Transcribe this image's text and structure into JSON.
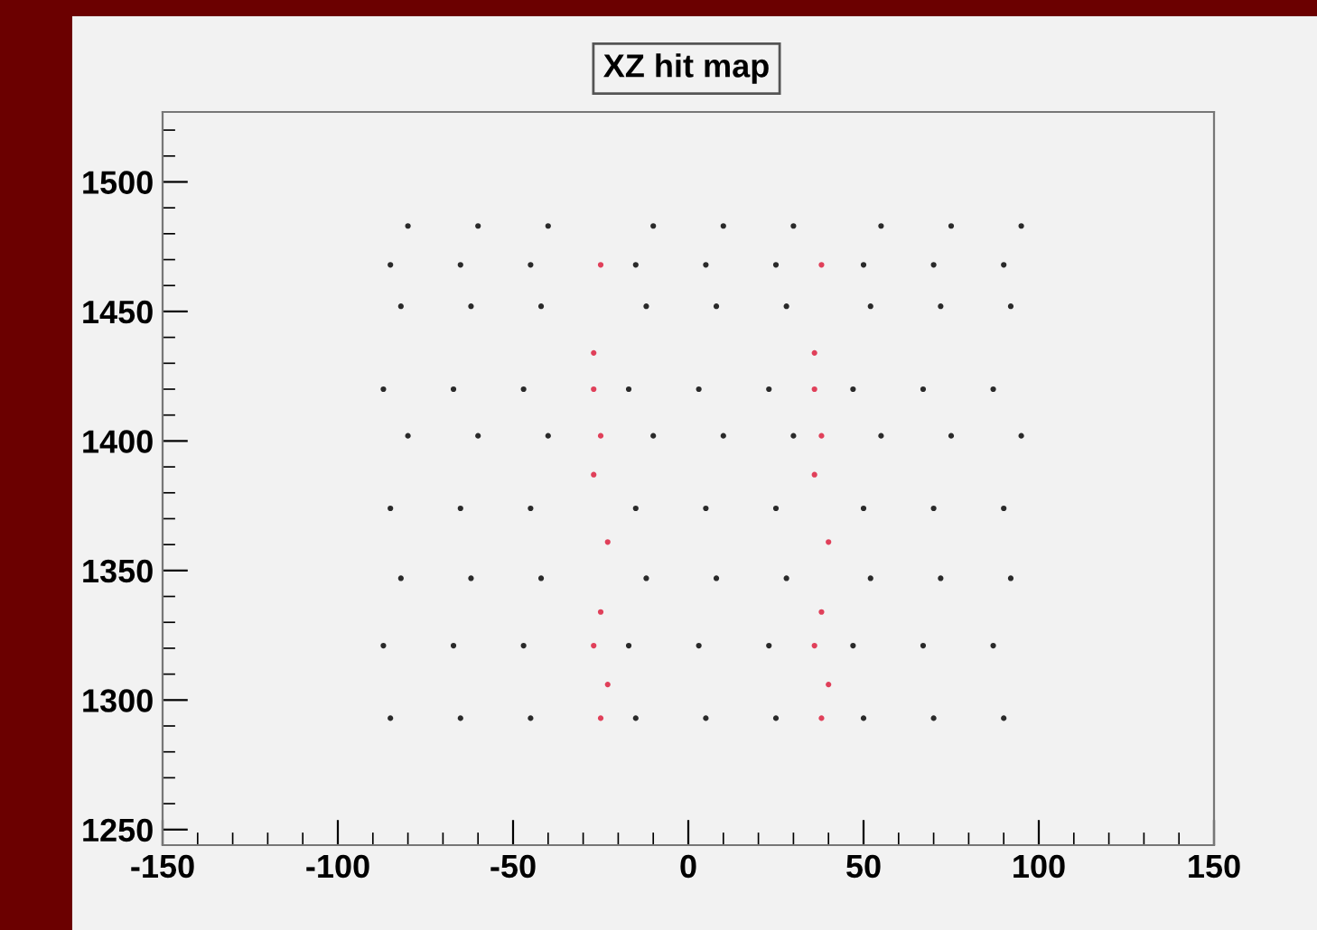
{
  "chart_data": {
    "type": "scatter",
    "title": "XZ hit map",
    "marker": "circle",
    "grid": false,
    "legend": false,
    "xlim": [
      -150,
      150
    ],
    "xticks": [
      -150,
      -100,
      -50,
      0,
      50,
      100,
      150
    ],
    "ylim": [
      1244,
      1527
    ],
    "yticks": [
      1250,
      1300,
      1350,
      1400,
      1450,
      1500
    ],
    "series": [
      {
        "color": "#2a2a2a",
        "x": [
          -80,
          -60,
          -40,
          -10,
          10,
          30,
          55,
          75,
          95,
          -85,
          -65,
          -45,
          -15,
          5,
          25,
          50,
          70,
          90,
          -82,
          -62,
          -42,
          -12,
          8,
          28,
          52,
          72,
          92,
          -87,
          -67,
          -47,
          -17,
          3,
          23,
          47,
          67,
          87,
          -80,
          -60,
          -40,
          -10,
          10,
          30,
          55,
          75,
          95,
          -85,
          -65,
          -45,
          -15,
          5,
          25,
          50,
          70,
          90,
          -82,
          -62,
          -42,
          -12,
          8,
          28,
          52,
          72,
          92,
          -87,
          -67,
          -47,
          -17,
          3,
          23,
          47,
          67,
          87,
          -85,
          -65,
          -45,
          -15,
          5,
          25,
          50,
          70,
          90
        ],
        "values": [
          1483,
          1483,
          1483,
          1483,
          1483,
          1483,
          1483,
          1483,
          1483,
          1468,
          1468,
          1468,
          1468,
          1468,
          1468,
          1468,
          1468,
          1468,
          1452,
          1452,
          1452,
          1452,
          1452,
          1452,
          1452,
          1452,
          1452,
          1420,
          1420,
          1420,
          1420,
          1420,
          1420,
          1420,
          1420,
          1420,
          1402,
          1402,
          1402,
          1402,
          1402,
          1402,
          1402,
          1402,
          1402,
          1374,
          1374,
          1374,
          1374,
          1374,
          1374,
          1374,
          1374,
          1374,
          1347,
          1347,
          1347,
          1347,
          1347,
          1347,
          1347,
          1347,
          1347,
          1321,
          1321,
          1321,
          1321,
          1321,
          1321,
          1321,
          1321,
          1321,
          1293,
          1293,
          1293,
          1293,
          1293,
          1293,
          1293,
          1293,
          1293
        ]
      },
      {
        "color": "#e0405a",
        "x": [
          -25,
          38,
          -27,
          36,
          -25,
          38,
          -27,
          36,
          -23,
          40,
          -25,
          38,
          -27,
          36,
          -23,
          40,
          -25,
          38,
          -27,
          36
        ],
        "values": [
          1468,
          1468,
          1434,
          1434,
          1402,
          1402,
          1387,
          1387,
          1361,
          1361,
          1334,
          1334,
          1321,
          1321,
          1306,
          1306,
          1293,
          1293,
          1420,
          1420
        ]
      }
    ]
  }
}
